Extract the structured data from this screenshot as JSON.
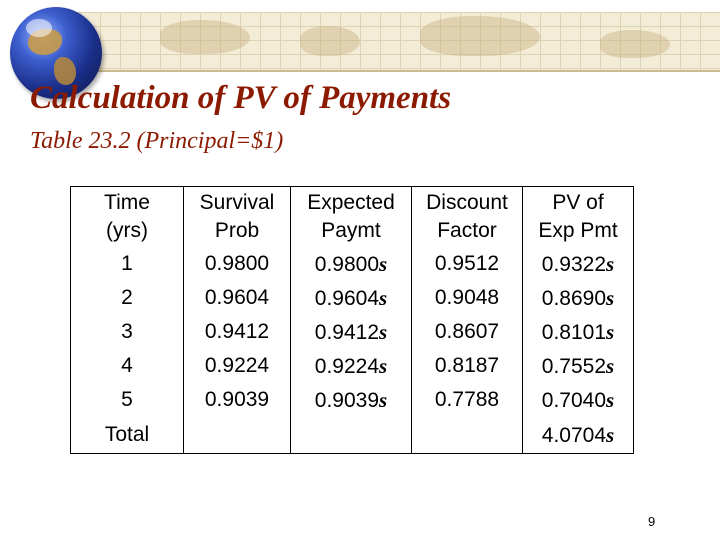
{
  "slide": {
    "title": "Calculation of PV of Payments",
    "subtitle": "Table 23.2 (Principal=$1)",
    "page_number": "9"
  },
  "table": {
    "headers": [
      [
        "Time",
        "(yrs)"
      ],
      [
        "Survival",
        "Prob"
      ],
      [
        "Expected",
        "Paymt"
      ],
      [
        "Discount",
        "Factor"
      ],
      [
        "PV of",
        "Exp Pmt"
      ]
    ],
    "rows": [
      {
        "time": "1",
        "survival": "0.9800",
        "expected": "0.9800",
        "discount": "0.9512",
        "pv": "0.9322"
      },
      {
        "time": "2",
        "survival": "0.9604",
        "expected": "0.9604",
        "discount": "0.9048",
        "pv": "0.8690"
      },
      {
        "time": "3",
        "survival": "0.9412",
        "expected": "0.9412",
        "discount": "0.8607",
        "pv": "0.8101"
      },
      {
        "time": "4",
        "survival": "0.9224",
        "expected": "0.9224",
        "discount": "0.8187",
        "pv": "0.7552"
      },
      {
        "time": "5",
        "survival": "0.9039",
        "expected": "0.9039",
        "discount": "0.7788",
        "pv": "0.7040"
      }
    ],
    "total": {
      "label": "Total",
      "pv": "4.0704"
    },
    "symbol": "s"
  },
  "colors": {
    "title": "#8b1a00",
    "band": "#f3ecd7"
  },
  "icons": {
    "header_graphic": "globe-icon"
  }
}
